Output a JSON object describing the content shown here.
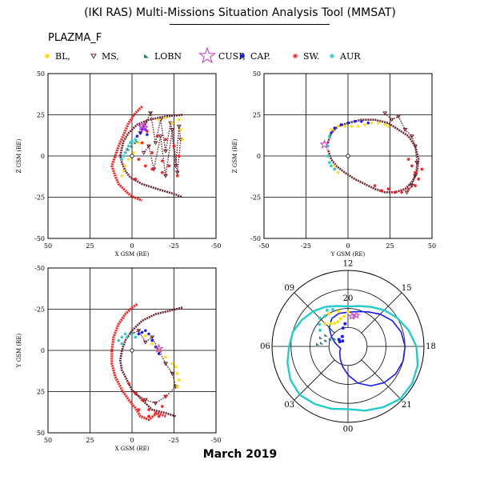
{
  "header": {
    "title": "(IKI RAS) Multi-Missions Situation Analysis Tool (MMSAT)",
    "mission": "PLAZMA_F",
    "date": "March 2019"
  },
  "legend": [
    {
      "label": "BL,",
      "color": "#ffe000",
      "icon": "filled-circle"
    },
    {
      "label": "MS,",
      "color": "#7a1e3c",
      "icon": "open-triangle-down"
    },
    {
      "label": "LOBN",
      "color": "#2b7a7a",
      "icon": "filled-triangle"
    },
    {
      "label": "CUSP,",
      "color": "#cc33cc",
      "icon": "open-star"
    },
    {
      "label": "CAP.",
      "color": "#1a1aff",
      "icon": "filled-circle"
    },
    {
      "label": "SW.",
      "color": "#ff1a1a",
      "icon": "asterisk"
    },
    {
      "label": "AUR",
      "color": "#22cccc",
      "icon": "asterisk"
    }
  ],
  "panels": {
    "xz": {
      "xlabel": "X GSM (RE)",
      "ylabel": "Z GSM (RE)",
      "xticks": [
        "50",
        "25",
        "0",
        "-25",
        "-50"
      ],
      "yticks": [
        "50",
        "25",
        "0",
        "-25",
        "-50"
      ]
    },
    "yz": {
      "xlabel": "Y GSM (RE)",
      "ylabel": "Z GSM (RE)",
      "xticks": [
        "-50",
        "-25",
        "0",
        "25",
        "50"
      ],
      "yticks": [
        "50",
        "25",
        "0",
        "-25",
        "-50"
      ]
    },
    "xy": {
      "xlabel": "X GSM (RE)",
      "ylabel": "Y GSM (RE)",
      "xticks": [
        "50",
        "25",
        "0",
        "-25",
        "-50"
      ],
      "yticks": [
        "-50",
        "-25",
        "0",
        "25",
        "50"
      ]
    },
    "polar": {
      "angle_labels": [
        "12",
        "15",
        "18",
        "21",
        "00",
        "03",
        "06",
        "09"
      ],
      "radial_label": "20"
    }
  },
  "chart_data": [
    {
      "type": "scatter",
      "title": "",
      "xlabel": "X GSM (RE)",
      "ylabel": "Z GSM (RE)",
      "xlim": [
        50,
        -50
      ],
      "ylim": [
        -50,
        50
      ],
      "series": [
        {
          "name": "SW.",
          "color": "#ff1a1a",
          "style": "bow-shock-arc",
          "x": [
            -6,
            -2,
            2,
            5,
            8,
            10,
            11,
            12,
            11,
            10,
            8,
            5,
            2,
            -1,
            -6
          ],
          "y": [
            30,
            26,
            20,
            13,
            6,
            0,
            -3,
            -6,
            -9,
            -12,
            -17,
            -20,
            -23,
            -25,
            -27
          ]
        },
        {
          "name": "MS,",
          "color": "#6b1f2e",
          "style": "magnetopause-arc",
          "x": [
            -30,
            -20,
            -10,
            -3,
            2,
            5,
            6,
            7,
            6,
            4,
            1,
            -6,
            -15,
            -25,
            -30
          ],
          "y": [
            25,
            24,
            22,
            19,
            14,
            9,
            5,
            0,
            -4,
            -9,
            -13,
            -17,
            -20,
            -23,
            -25
          ]
        },
        {
          "name": "MS,",
          "color": "#6b1f2e",
          "style": "loops",
          "x": [
            -5,
            -8,
            -11,
            -14,
            -17,
            -20,
            -23,
            -26,
            -28,
            -29,
            -27,
            -24,
            -20,
            -17,
            -13,
            -10,
            -7
          ],
          "y": [
            14,
            20,
            26,
            8,
            22,
            3,
            20,
            -6,
            18,
            10,
            -10,
            16,
            -12,
            12,
            -8,
            6,
            2
          ]
        },
        {
          "name": "SW.",
          "color": "#ff1a1a",
          "style": "dots",
          "x": [
            -6,
            -9,
            -12,
            -15,
            -18,
            -20,
            -22,
            -25,
            -27,
            -28,
            -18,
            -12,
            -8,
            -4,
            -2
          ],
          "y": [
            8,
            15,
            2,
            12,
            -3,
            10,
            -6,
            6,
            -12,
            0,
            -10,
            -8,
            -6,
            -2,
            -14
          ]
        },
        {
          "name": "BL,",
          "color": "#ffe000",
          "style": "dots",
          "x": [
            -28,
            -29,
            -30,
            -24,
            -20,
            -16,
            -4,
            -1,
            2,
            4,
            5,
            6
          ],
          "y": [
            22,
            16,
            10,
            20,
            23,
            22,
            8,
            2,
            -2,
            -6,
            -9,
            -12
          ]
        },
        {
          "name": "AUR",
          "color": "#22cccc",
          "style": "dots",
          "x": [
            6,
            5,
            4,
            3,
            2,
            1,
            0,
            -2
          ],
          "y": [
            -2,
            0,
            2,
            4,
            6,
            8,
            9,
            10
          ]
        },
        {
          "name": "CAP.",
          "color": "#1a1aff",
          "style": "dots",
          "x": [
            -3,
            -5,
            -6,
            -7,
            -8,
            -9
          ],
          "y": [
            12,
            14,
            16,
            18,
            16,
            13
          ]
        },
        {
          "name": "LOBN",
          "color": "#2b7a7a",
          "style": "dots",
          "x": [
            2,
            0,
            -2,
            -3
          ],
          "y": [
            4,
            6,
            8,
            9
          ]
        },
        {
          "name": "CUSP,",
          "color": "#cc33cc",
          "style": "dots",
          "x": [
            -6,
            -7
          ],
          "y": [
            18,
            17
          ]
        }
      ]
    },
    {
      "type": "scatter",
      "title": "",
      "xlabel": "Y GSM (RE)",
      "ylabel": "Z GSM (RE)",
      "xlim": [
        -50,
        50
      ],
      "ylim": [
        -50,
        50
      ],
      "series": [
        {
          "name": "MS,",
          "color": "#6b1f2e",
          "style": "orbit-ring",
          "x": [
            -12,
            -10,
            -6,
            0,
            8,
            16,
            24,
            30,
            36,
            40,
            42,
            41,
            38,
            34,
            28,
            22,
            16,
            10,
            4,
            -2,
            -7,
            -10,
            -12
          ],
          "y": [
            8,
            14,
            18,
            20,
            22,
            22,
            20,
            16,
            12,
            6,
            -2,
            -10,
            -16,
            -20,
            -22,
            -22,
            -20,
            -17,
            -14,
            -10,
            -6,
            -2,
            4
          ]
        },
        {
          "name": "MS,",
          "color": "#6b1f2e",
          "style": "loops",
          "x": [
            22,
            26,
            30,
            34,
            38,
            40,
            41,
            40,
            38,
            35
          ],
          "y": [
            26,
            22,
            24,
            16,
            12,
            6,
            -4,
            -12,
            -18,
            -22
          ]
        },
        {
          "name": "SW.",
          "color": "#ff1a1a",
          "style": "dots",
          "x": [
            36,
            38,
            40,
            42,
            44,
            40,
            36,
            32,
            28,
            24,
            20,
            16
          ],
          "y": [
            -2,
            -6,
            -10,
            -14,
            -8,
            -18,
            -20,
            -22,
            -22,
            -20,
            -21,
            -18
          ]
        },
        {
          "name": "BL,",
          "color": "#ffe000",
          "style": "dots",
          "x": [
            -10,
            -6,
            -2,
            2,
            6,
            10,
            14,
            18,
            22,
            24,
            -8,
            -6
          ],
          "y": [
            16,
            18,
            18,
            18,
            18,
            19,
            20,
            20,
            19,
            18,
            -6,
            -10
          ]
        },
        {
          "name": "AUR",
          "color": "#22cccc",
          "style": "dots",
          "x": [
            -11,
            -12,
            -12,
            -11,
            -10,
            -8
          ],
          "y": [
            12,
            6,
            0,
            -4,
            -6,
            -8
          ]
        },
        {
          "name": "CAP.",
          "color": "#1a1aff",
          "style": "dots",
          "x": [
            -10,
            -8,
            -4,
            0,
            4,
            8,
            12
          ],
          "y": [
            14,
            17,
            19,
            20,
            21,
            21,
            20
          ]
        },
        {
          "name": "CUSP,",
          "color": "#cc33cc",
          "style": "dots",
          "x": [
            -14
          ],
          "y": [
            7
          ]
        }
      ]
    },
    {
      "type": "scatter",
      "title": "",
      "xlabel": "X GSM (RE)",
      "ylabel": "Y GSM (RE)",
      "xlim": [
        50,
        -50
      ],
      "ylim": [
        50,
        -50
      ],
      "series": [
        {
          "name": "SW.",
          "color": "#ff1a1a",
          "style": "bow-shock-arc",
          "x": [
            -3,
            0,
            4,
            8,
            11,
            12,
            12,
            10,
            6,
            2,
            -2,
            -5,
            -10,
            -15,
            -20
          ],
          "y": [
            -28,
            -26,
            -22,
            -16,
            -8,
            0,
            8,
            16,
            24,
            30,
            35,
            40,
            42,
            38,
            40
          ]
        },
        {
          "name": "MS,",
          "color": "#6b1f2e",
          "style": "magnetopause-arc",
          "x": [
            -30,
            -22,
            -14,
            -6,
            0,
            4,
            6,
            7,
            6,
            3,
            0,
            -6,
            -12,
            -20,
            -26
          ],
          "y": [
            -26,
            -24,
            -22,
            -18,
            -12,
            -6,
            0,
            6,
            12,
            18,
            24,
            30,
            36,
            38,
            40
          ]
        },
        {
          "name": "MS,",
          "color": "#6b1f2e",
          "style": "loops",
          "x": [
            0,
            -4,
            -8,
            -12,
            -16,
            -20,
            -24,
            -26,
            -20,
            -14,
            -8,
            -2
          ],
          "y": [
            -10,
            -12,
            -5,
            -8,
            0,
            8,
            14,
            22,
            28,
            32,
            30,
            26
          ]
        },
        {
          "name": "SW.",
          "color": "#ff1a1a",
          "style": "dots",
          "x": [
            2,
            -2,
            -6,
            -10,
            -14,
            -18,
            -20,
            -16,
            -10,
            -4
          ],
          "y": [
            20,
            26,
            30,
            36,
            38,
            34,
            28,
            40,
            40,
            36
          ]
        },
        {
          "name": "BL,",
          "color": "#ffe000",
          "style": "dots",
          "x": [
            -4,
            -8,
            -12,
            -16,
            -20,
            -24,
            -26,
            -27,
            -28,
            -27
          ],
          "y": [
            -10,
            -9,
            -4,
            0,
            4,
            8,
            10,
            14,
            18,
            22
          ]
        },
        {
          "name": "AUR",
          "color": "#22cccc",
          "style": "dots",
          "x": [
            4,
            6,
            8,
            6,
            3,
            0,
            -2
          ],
          "y": [
            -10,
            -8,
            -6,
            -4,
            -8,
            -10,
            -8
          ]
        },
        {
          "name": "CAP.",
          "color": "#1a1aff",
          "style": "dots",
          "x": [
            -4,
            -6,
            -8,
            -10,
            -12,
            -14,
            -16
          ],
          "y": [
            -10,
            -11,
            -12,
            -10,
            -6,
            -2,
            2
          ]
        },
        {
          "name": "CUSP,",
          "color": "#cc33cc",
          "style": "dots",
          "x": [
            -16
          ],
          "y": [
            -1
          ]
        }
      ]
    },
    {
      "type": "polar",
      "title": "",
      "angle_labels": [
        "12",
        "15",
        "18",
        "21",
        "00",
        "03",
        "06",
        "09"
      ],
      "radial_label": "20",
      "series": [
        {
          "name": "AUR",
          "color": "#22cccc",
          "style": "oval-line",
          "mlt": [
            6,
            7,
            8,
            9,
            10,
            11,
            12,
            13,
            14,
            15,
            16,
            17,
            18,
            19,
            20,
            21,
            22,
            23,
            24,
            1,
            2,
            3,
            4,
            5,
            6
          ],
          "r": [
            31,
            30,
            28,
            26,
            24,
            22,
            21,
            22,
            24,
            27,
            30,
            33,
            36,
            38,
            39,
            39,
            37,
            35,
            33,
            34,
            35,
            36,
            35,
            33,
            31
          ]
        },
        {
          "name": "CAP.",
          "color": "#1a1aff",
          "style": "oval-line",
          "mlt": [
            6,
            7,
            8,
            9,
            10,
            11,
            12,
            13,
            14,
            15,
            16,
            17,
            18,
            19,
            20,
            21,
            22,
            23,
            24,
            1,
            2,
            3,
            4,
            5,
            6
          ],
          "r": [
            5,
            7,
            10,
            14,
            17,
            18,
            18,
            19,
            21,
            24,
            27,
            29,
            30,
            30,
            29,
            27,
            24,
            20,
            15,
            11,
            8,
            6,
            5,
            4,
            5
          ]
        },
        {
          "name": "BL,",
          "color": "#ffe000",
          "style": "dots",
          "mlt": [
            12,
            11.5,
            11,
            10.5,
            10,
            9.5,
            9,
            10,
            11
          ],
          "r": [
            18,
            16,
            15,
            14,
            14,
            15,
            17,
            20,
            19
          ]
        },
        {
          "name": "AUR",
          "color": "#22cccc",
          "style": "dots",
          "mlt": [
            9.5,
            9,
            8.5,
            8,
            10,
            10.5
          ],
          "r": [
            20,
            21,
            19,
            17,
            22,
            21
          ]
        },
        {
          "name": "LOBN",
          "color": "#2b7a7a",
          "style": "dots",
          "mlt": [
            8,
            7.5,
            7,
            6.5,
            6.3,
            7.8,
            7.2
          ],
          "r": [
            8,
            10,
            12,
            14,
            16,
            13,
            15
          ]
        },
        {
          "name": "CAP.",
          "color": "#1a1aff",
          "style": "dots",
          "mlt": [
            9,
            8.5,
            8,
            10,
            11,
            11.5
          ],
          "r": [
            4,
            6,
            5,
            6,
            10,
            12
          ]
        },
        {
          "name": "CUSP,",
          "color": "#cc33cc",
          "style": "dots",
          "mlt": [
            12.5,
            13
          ],
          "r": [
            16,
            17
          ]
        }
      ]
    }
  ]
}
